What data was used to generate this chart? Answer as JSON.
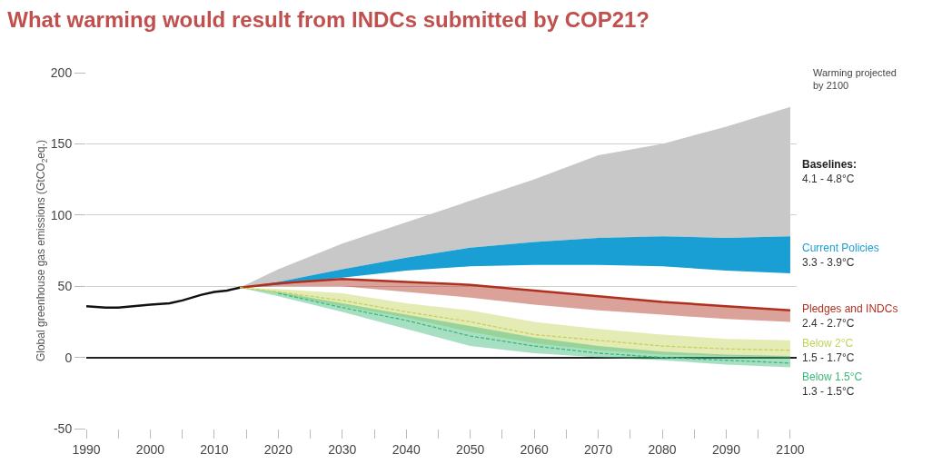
{
  "chart_data": {
    "type": "line",
    "title": "What warming would result from INDCs submitted by COP21?",
    "ylabel": "Global greenhouse gas emissions (GtCO$_{2}$eq.)",
    "annotations": [
      "Warming projected\nby 2100",
      "Baselines:\n4.1 - 4.8°C",
      "3.3 - 3.9°C",
      "2.4 - 2.7°C",
      "1.5 - 1.7°C",
      "1.3 - 1.5°C"
    ],
    "xlim": [
      1990,
      2101
    ],
    "xticks": [
      1990,
      {
        "value": 1995,
        "label": null
      },
      2000,
      {
        "value": 2005,
        "label": null
      },
      2010,
      {
        "value": 2015,
        "label": null
      },
      2020,
      {
        "value": 2025,
        "label": null
      },
      2030,
      {
        "value": 2035,
        "label": null
      },
      2040,
      {
        "value": 2045,
        "label": null
      },
      2050,
      {
        "value": 2055,
        "label": null
      },
      2060,
      {
        "value": 2065,
        "label": null
      },
      2070,
      {
        "value": 2075,
        "label": null
      },
      2080,
      {
        "value": 2085,
        "label": null
      },
      2090,
      {
        "value": 2095,
        "label": null
      },
      2100
    ],
    "ylim": [
      -50,
      200
    ],
    "yticks": [
      -50,
      0,
      50,
      100,
      150,
      200
    ],
    "grid": "y",
    "series": [
      {
        "color": "#111111",
        "line_style": "solid",
        "x": [
          1990,
          1993,
          1995,
          2000,
          2003,
          2005,
          2008,
          2010,
          2012,
          2014
        ],
        "values": [
          36,
          35,
          35,
          37,
          38,
          40,
          44,
          46,
          47,
          49
        ]
      },
      {
        "color": "#c8c8c8",
        "x": [
          2014,
          2020,
          2030,
          2040,
          2050,
          2060,
          2070,
          2080,
          2090,
          2100
        ],
        "values": [
          null,
          null,
          null,
          null,
          null,
          null,
          null,
          null,
          null,
          null
        ],
        "lower": [
          49,
          53,
          62,
          70,
          77,
          81,
          84,
          85,
          84,
          85
        ],
        "upper": [
          49,
          62,
          80,
          95,
          110,
          125,
          142,
          150,
          162,
          176
        ]
      },
      {
        "name": "Current Policies",
        "color": "#1a9fd4",
        "x": [
          2014,
          2020,
          2030,
          2040,
          2050,
          2060,
          2070,
          2080,
          2090,
          2100
        ],
        "values": [
          null,
          null,
          null,
          null,
          null,
          null,
          null,
          null,
          null,
          null
        ],
        "lower": [
          49,
          51,
          56,
          61,
          64,
          65,
          65,
          64,
          61,
          59
        ],
        "upper": [
          49,
          53,
          62,
          70,
          77,
          81,
          84,
          85,
          84,
          85
        ]
      },
      {
        "name": "Pledges and INDCs",
        "color": "#b03020",
        "line_style": "solid",
        "x": [
          2014,
          2020,
          2030,
          2040,
          2050,
          2060,
          2070,
          2080,
          2090,
          2100
        ],
        "values": [
          49,
          52,
          55,
          53,
          51,
          47,
          43,
          39,
          36,
          33
        ],
        "lower": [
          49,
          50,
          50,
          46,
          42,
          37,
          33,
          30,
          27,
          25
        ],
        "upper": [
          49,
          52,
          55,
          53,
          51,
          47,
          43,
          39,
          36,
          33
        ]
      },
      {
        "name": "Below 2°C",
        "color": "#c3d25a",
        "line_style": "dashed",
        "x": [
          2014,
          2020,
          2030,
          2040,
          2050,
          2060,
          2070,
          2080,
          2090,
          2100
        ],
        "values": [
          49,
          46,
          40,
          32,
          25,
          16,
          12,
          8,
          6,
          5
        ],
        "lower": [
          49,
          45,
          36,
          28,
          18,
          10,
          5,
          2,
          1,
          0
        ],
        "upper": [
          49,
          48,
          45,
          38,
          33,
          25,
          20,
          16,
          13,
          12
        ]
      },
      {
        "name": "Below 1.5°C",
        "color": "#3cb878",
        "line_style": "dashed",
        "x": [
          2014,
          2020,
          2030,
          2040,
          2050,
          2060,
          2070,
          2080,
          2090,
          2100
        ],
        "values": [
          null,
          45,
          35,
          26,
          15,
          8,
          3,
          0,
          -2,
          -4
        ],
        "lower": [
          49,
          43,
          32,
          20,
          8,
          3,
          0,
          -2,
          -5,
          -7
        ],
        "upper": [
          49,
          46,
          38,
          30,
          22,
          14,
          8,
          4,
          2,
          1
        ]
      }
    ]
  }
}
